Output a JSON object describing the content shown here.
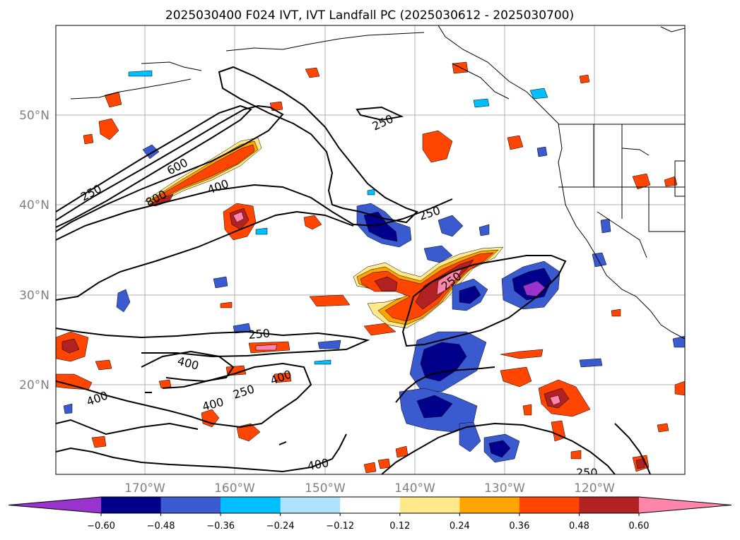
{
  "title": "2025030400 F024 IVT, IVT Landfall PC (2025030612 - 2025030700)",
  "lat_labels": [
    "50°N",
    "40°N",
    "30°N",
    "20°N"
  ],
  "lon_labels": [
    "170°W",
    "160°W",
    "150°W",
    "140°W",
    "130°W",
    "120°W"
  ],
  "contour_labels": [
    "250",
    "600",
    "800",
    "400",
    "250",
    "250",
    "250",
    "250",
    "400",
    "250",
    "400",
    "400",
    "400",
    "400"
  ],
  "colorbar": {
    "ticks": [
      "−0.60",
      "−0.48",
      "−0.36",
      "−0.24",
      "−0.12",
      "0.12",
      "0.24",
      "0.36",
      "0.48",
      "0.60"
    ],
    "colors": [
      "#9a32cd",
      "#00008b",
      "#3a5bd0",
      "#00bfff",
      "#afe3fb",
      "#ffffff",
      "#ffe98a",
      "#ffa500",
      "#ff4500",
      "#b22222",
      "#ff85aa"
    ]
  }
}
